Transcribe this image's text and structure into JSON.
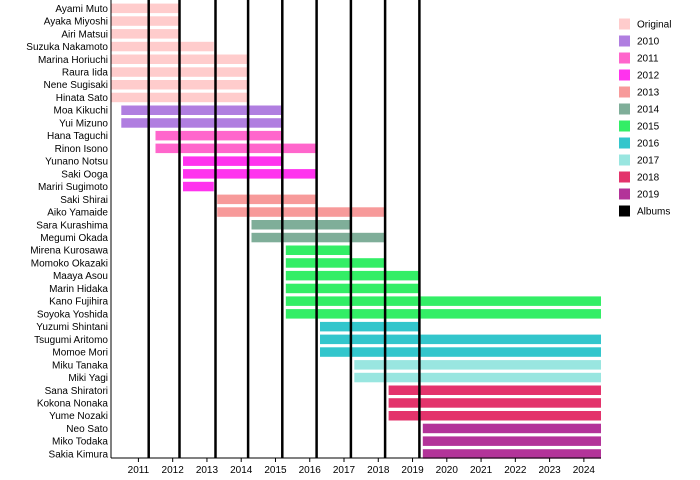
{
  "chart_data": {
    "type": "timeline",
    "title": "",
    "x_axis": {
      "range": [
        2010.2,
        2024.5
      ],
      "ticks": [
        "2011",
        "2012",
        "2013",
        "2014",
        "2015",
        "2016",
        "2017",
        "2018",
        "2019",
        "2020",
        "2021",
        "2022",
        "2023",
        "2024"
      ]
    },
    "members": [
      {
        "name": "Ayami Muto",
        "start": 2010.2,
        "end": 2012.2
      },
      {
        "name": "Ayaka Miyoshi",
        "start": 2010.2,
        "end": 2012.2
      },
      {
        "name": "Airi Matsui",
        "start": 2010.2,
        "end": 2012.2
      },
      {
        "name": "Suzuka Nakamoto",
        "start": 2010.2,
        "end": 2013.2
      },
      {
        "name": "Marina Horiuchi",
        "start": 2010.2,
        "end": 2014.2
      },
      {
        "name": "Raura Iida",
        "start": 2010.2,
        "end": 2014.2
      },
      {
        "name": "Nene Sugisaki",
        "start": 2010.2,
        "end": 2014.2
      },
      {
        "name": "Hinata Sato",
        "start": 2010.2,
        "end": 2014.2
      },
      {
        "name": "Moa Kikuchi",
        "start": 2010.5,
        "end": 2015.2
      },
      {
        "name": "Yui Mizuno",
        "start": 2010.5,
        "end": 2015.2
      },
      {
        "name": "Hana Taguchi",
        "start": 2011.5,
        "end": 2015.2
      },
      {
        "name": "Rinon Isono",
        "start": 2011.5,
        "end": 2016.2
      },
      {
        "name": "Yunano Notsu",
        "start": 2012.3,
        "end": 2015.2
      },
      {
        "name": "Saki Ooga",
        "start": 2012.3,
        "end": 2016.2
      },
      {
        "name": "Mariri Sugimoto",
        "start": 2012.3,
        "end": 2013.2
      },
      {
        "name": "Saki Shirai",
        "start": 2013.3,
        "end": 2016.2
      },
      {
        "name": "Aiko Yamaide",
        "start": 2013.3,
        "end": 2018.2
      },
      {
        "name": "Sara Kurashima",
        "start": 2014.3,
        "end": 2017.2
      },
      {
        "name": "Megumi Okada",
        "start": 2014.3,
        "end": 2018.2
      },
      {
        "name": "Mirena Kurosawa",
        "start": 2015.3,
        "end": 2017.2
      },
      {
        "name": "Momoko Okazaki",
        "start": 2015.3,
        "end": 2018.2
      },
      {
        "name": "Maaya Asou",
        "start": 2015.3,
        "end": 2019.2
      },
      {
        "name": "Marin Hidaka",
        "start": 2015.3,
        "end": 2019.2
      },
      {
        "name": "Kano Fujihira",
        "start": 2015.3,
        "end": 2024.5
      },
      {
        "name": "Soyoka Yoshida",
        "start": 2015.3,
        "end": 2024.5
      },
      {
        "name": "Yuzumi Shintani",
        "start": 2016.3,
        "end": 2019.2
      },
      {
        "name": "Tsugumi Aritomo",
        "start": 2016.3,
        "end": 2024.5
      },
      {
        "name": "Momoe Mori",
        "start": 2016.3,
        "end": 2024.5
      },
      {
        "name": "Miku Tanaka",
        "start": 2017.3,
        "end": 2024.5
      },
      {
        "name": "Miki Yagi",
        "start": 2017.3,
        "end": 2024.5
      },
      {
        "name": "Sana Shiratori",
        "start": 2018.3,
        "end": 2024.5
      },
      {
        "name": "Kokona Nonaka",
        "start": 2018.3,
        "end": 2024.5
      },
      {
        "name": "Yume Nozaki",
        "start": 2018.3,
        "end": 2024.5
      },
      {
        "name": "Neo Sato",
        "start": 2019.3,
        "end": 2024.5
      },
      {
        "name": "Miko Todaka",
        "start": 2019.3,
        "end": 2024.5
      },
      {
        "name": "Sakia Kimura",
        "start": 2019.3,
        "end": 2024.5
      }
    ],
    "groups": [
      {
        "label": "Original",
        "color": "#ffcccc",
        "first_member": 0,
        "last_member": 7
      },
      {
        "label": "2010",
        "color": "#b07ee0",
        "first_member": 8,
        "last_member": 9
      },
      {
        "label": "2011",
        "color": "#ff66cc",
        "first_member": 10,
        "last_member": 11
      },
      {
        "label": "2012",
        "color": "#ff33ee",
        "first_member": 12,
        "last_member": 14
      },
      {
        "label": "2013",
        "color": "#f79a9a",
        "first_member": 15,
        "last_member": 16
      },
      {
        "label": "2014",
        "color": "#7fae99",
        "first_member": 17,
        "last_member": 18
      },
      {
        "label": "2015",
        "color": "#33ee66",
        "first_member": 19,
        "last_member": 24
      },
      {
        "label": "2016",
        "color": "#33c6cc",
        "first_member": 25,
        "last_member": 27
      },
      {
        "label": "2017",
        "color": "#99e6e0",
        "first_member": 28,
        "last_member": 29
      },
      {
        "label": "2018",
        "color": "#e3336b",
        "first_member": 30,
        "last_member": 32
      },
      {
        "label": "2019",
        "color": "#b33399",
        "first_member": 33,
        "last_member": 35
      }
    ],
    "albums": {
      "label": "Albums",
      "color": "#000000",
      "years": [
        2011.3,
        2012.2,
        2013.25,
        2014.2,
        2015.2,
        2016.2,
        2017.2,
        2018.2,
        2019.2
      ]
    },
    "legend_placement": "right",
    "grid": false
  }
}
